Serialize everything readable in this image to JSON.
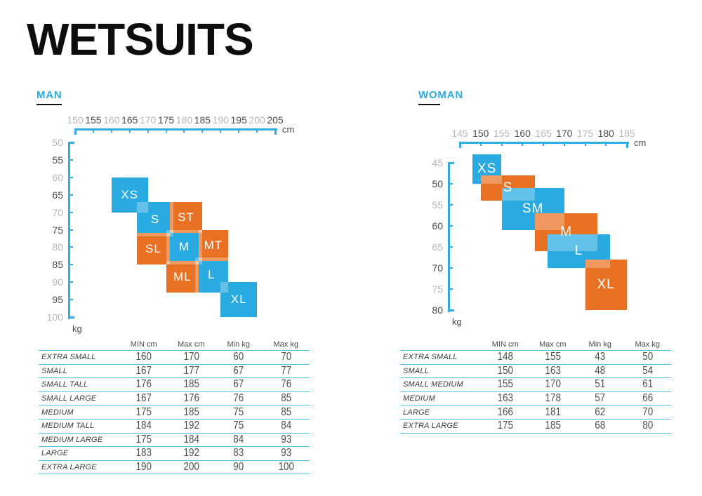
{
  "title": "WETSUITS",
  "colors": {
    "blue": "#29ABE2",
    "orange": "#E97123",
    "axis": "#33ACE0",
    "table_line": "#4FC0EA",
    "tick_dark": "#4D4D4D",
    "tick_gray": "#B7B7B7"
  },
  "chart_data": [
    {
      "id": "man",
      "title": "MAN",
      "type": "heatmap",
      "xlabel": "cm",
      "ylabel": "kg",
      "x_range": [
        150,
        205
      ],
      "y_range": [
        50,
        100
      ],
      "x_ticks": [
        150,
        155,
        160,
        165,
        170,
        175,
        180,
        185,
        190,
        195,
        200,
        205
      ],
      "y_ticks": [
        50,
        55,
        60,
        65,
        70,
        75,
        80,
        85,
        90,
        95,
        100
      ],
      "blocks": [
        {
          "label": "XS",
          "size": "EXTRA SMALL",
          "color": "blue",
          "cm": [
            160,
            170
          ],
          "kg": [
            60,
            70
          ]
        },
        {
          "label": "S",
          "size": "SMALL",
          "color": "blue",
          "cm": [
            167,
            177
          ],
          "kg": [
            67,
            77
          ]
        },
        {
          "label": "M",
          "size": "MEDIUM",
          "color": "blue",
          "cm": [
            175,
            185
          ],
          "kg": [
            75,
            85
          ]
        },
        {
          "label": "L",
          "size": "LARGE",
          "color": "blue",
          "cm": [
            183,
            192
          ],
          "kg": [
            83,
            93
          ]
        },
        {
          "label": "XL",
          "size": "EXTRA LARGE",
          "color": "blue",
          "cm": [
            190,
            200
          ],
          "kg": [
            90,
            100
          ]
        },
        {
          "label": "ST",
          "size": "SMALL TALL",
          "color": "orange",
          "cm": [
            176,
            185
          ],
          "kg": [
            67,
            76
          ]
        },
        {
          "label": "SL",
          "size": "SMALL LARGE",
          "color": "orange",
          "cm": [
            167,
            176
          ],
          "kg": [
            76,
            85
          ]
        },
        {
          "label": "MT",
          "size": "MEDIUM TALL",
          "color": "orange",
          "cm": [
            184,
            192
          ],
          "kg": [
            75,
            84
          ]
        },
        {
          "label": "ML",
          "size": "MEDIUM LARGE",
          "color": "orange",
          "cm": [
            175,
            184
          ],
          "kg": [
            84,
            93
          ]
        }
      ],
      "table": {
        "headers": [
          "MIN cm",
          "Max cm",
          "Min kg",
          "Max kg"
        ],
        "rows": [
          {
            "size": "EXTRA SMALL",
            "min_cm": 160,
            "max_cm": 170,
            "min_kg": 60,
            "max_kg": 70
          },
          {
            "size": "SMALL",
            "min_cm": 167,
            "max_cm": 177,
            "min_kg": 67,
            "max_kg": 77
          },
          {
            "size": "SMALL TALL",
            "min_cm": 176,
            "max_cm": 185,
            "min_kg": 67,
            "max_kg": 76
          },
          {
            "size": "SMALL LARGE",
            "min_cm": 167,
            "max_cm": 176,
            "min_kg": 76,
            "max_kg": 85
          },
          {
            "size": "MEDIUM",
            "min_cm": 175,
            "max_cm": 185,
            "min_kg": 75,
            "max_kg": 85
          },
          {
            "size": "MEDIUM TALL",
            "min_cm": 184,
            "max_cm": 192,
            "min_kg": 75,
            "max_kg": 84
          },
          {
            "size": "MEDIUM LARGE",
            "min_cm": 175,
            "max_cm": 184,
            "min_kg": 84,
            "max_kg": 93
          },
          {
            "size": "LARGE",
            "min_cm": 183,
            "max_cm": 192,
            "min_kg": 83,
            "max_kg": 93
          },
          {
            "size": "EXTRA LARGE",
            "min_cm": 190,
            "max_cm": 200,
            "min_kg": 90,
            "max_kg": 100
          }
        ]
      }
    },
    {
      "id": "woman",
      "title": "WOMAN",
      "type": "heatmap",
      "xlabel": "cm",
      "ylabel": "kg",
      "x_range": [
        145,
        185
      ],
      "y_range": [
        45,
        80
      ],
      "x_ticks": [
        145,
        150,
        155,
        160,
        165,
        170,
        175,
        180,
        185
      ],
      "y_ticks": [
        45,
        50,
        55,
        60,
        65,
        70,
        75,
        80
      ],
      "blocks": [
        {
          "label": "XS",
          "size": "EXTRA SMALL",
          "color": "blue",
          "cm": [
            148,
            155
          ],
          "kg": [
            43,
            50
          ]
        },
        {
          "label": "S",
          "size": "SMALL",
          "color": "orange",
          "cm": [
            150,
            163
          ],
          "kg": [
            48,
            54
          ]
        },
        {
          "label": "SM",
          "size": "SMALL MEDIUM",
          "color": "blue",
          "cm": [
            155,
            170
          ],
          "kg": [
            51,
            61
          ]
        },
        {
          "label": "M",
          "size": "MEDIUM",
          "color": "orange",
          "cm": [
            163,
            178
          ],
          "kg": [
            57,
            66
          ]
        },
        {
          "label": "L",
          "size": "LARGE",
          "color": "blue",
          "cm": [
            166,
            181
          ],
          "kg": [
            62,
            70
          ]
        },
        {
          "label": "XL",
          "size": "EXTRA LARGE",
          "color": "orange",
          "cm": [
            175,
            185
          ],
          "kg": [
            68,
            80
          ]
        }
      ],
      "table": {
        "headers": [
          "MIN cm",
          "Max cm",
          "Min kg",
          "Max kg"
        ],
        "rows": [
          {
            "size": "EXTRA SMALL",
            "min_cm": 148,
            "max_cm": 155,
            "min_kg": 43,
            "max_kg": 50
          },
          {
            "size": "SMALL",
            "min_cm": 150,
            "max_cm": 163,
            "min_kg": 48,
            "max_kg": 54
          },
          {
            "size": "SMALL MEDIUM",
            "min_cm": 155,
            "max_cm": 170,
            "min_kg": 51,
            "max_kg": 61
          },
          {
            "size": "MEDIUM",
            "min_cm": 163,
            "max_cm": 178,
            "min_kg": 57,
            "max_kg": 66
          },
          {
            "size": "LARGE",
            "min_cm": 166,
            "max_cm": 181,
            "min_kg": 62,
            "max_kg": 70
          },
          {
            "size": "EXTRA LARGE",
            "min_cm": 175,
            "max_cm": 185,
            "min_kg": 68,
            "max_kg": 80
          }
        ]
      }
    }
  ]
}
